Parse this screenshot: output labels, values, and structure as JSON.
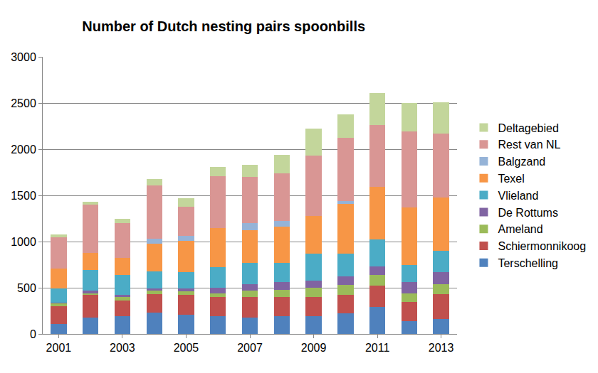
{
  "chart_data": {
    "type": "bar",
    "title": "Number of Dutch nesting pairs spoonbills",
    "stacked": true,
    "grid": true,
    "legend": "right",
    "x": [
      2001,
      2002,
      2003,
      2004,
      2005,
      2006,
      2007,
      2008,
      2009,
      2010,
      2011,
      2012,
      2013
    ],
    "xlim": [
      2000.5,
      2013.5
    ],
    "xticks": [
      2001,
      2003,
      2005,
      2007,
      2009,
      2011,
      2013
    ],
    "ylim": [
      0,
      3000
    ],
    "yticks": [
      0,
      500,
      1000,
      1500,
      2000,
      2500,
      3000
    ],
    "series": [
      {
        "name": "Terschelling",
        "color": "#4f81bd",
        "values": [
          110,
          180,
          190,
          230,
          210,
          190,
          180,
          190,
          190,
          220,
          290,
          140,
          160
        ]
      },
      {
        "name": "Schiermonnikoog",
        "color": "#c0504d",
        "values": [
          190,
          240,
          170,
          200,
          210,
          210,
          220,
          210,
          210,
          200,
          230,
          210,
          270
        ]
      },
      {
        "name": "Ameland",
        "color": "#9bbb59",
        "values": [
          30,
          20,
          40,
          40,
          40,
          40,
          70,
          80,
          100,
          110,
          120,
          90,
          110
        ]
      },
      {
        "name": "De Rottums",
        "color": "#8064a2",
        "values": [
          10,
          30,
          20,
          20,
          30,
          60,
          70,
          80,
          80,
          90,
          90,
          120,
          130
        ]
      },
      {
        "name": "Vlieland",
        "color": "#4bacc6",
        "values": [
          150,
          220,
          220,
          190,
          180,
          220,
          230,
          210,
          290,
          250,
          290,
          190,
          230
        ]
      },
      {
        "name": "Texel",
        "color": "#f79646",
        "values": [
          220,
          190,
          180,
          300,
          340,
          430,
          350,
          390,
          410,
          540,
          570,
          620,
          580
        ]
      },
      {
        "name": "Balgzand",
        "color": "#95b3d7",
        "values": [
          0,
          0,
          0,
          50,
          50,
          0,
          80,
          60,
          0,
          30,
          0,
          0,
          0
        ]
      },
      {
        "name": "Rest van NL",
        "color": "#d99694",
        "values": [
          340,
          520,
          380,
          580,
          320,
          560,
          500,
          520,
          650,
          680,
          670,
          820,
          690
        ]
      },
      {
        "name": "Deltagebied",
        "color": "#c3d69b",
        "values": [
          30,
          30,
          50,
          70,
          90,
          100,
          130,
          200,
          290,
          260,
          350,
          310,
          340
        ]
      }
    ]
  }
}
